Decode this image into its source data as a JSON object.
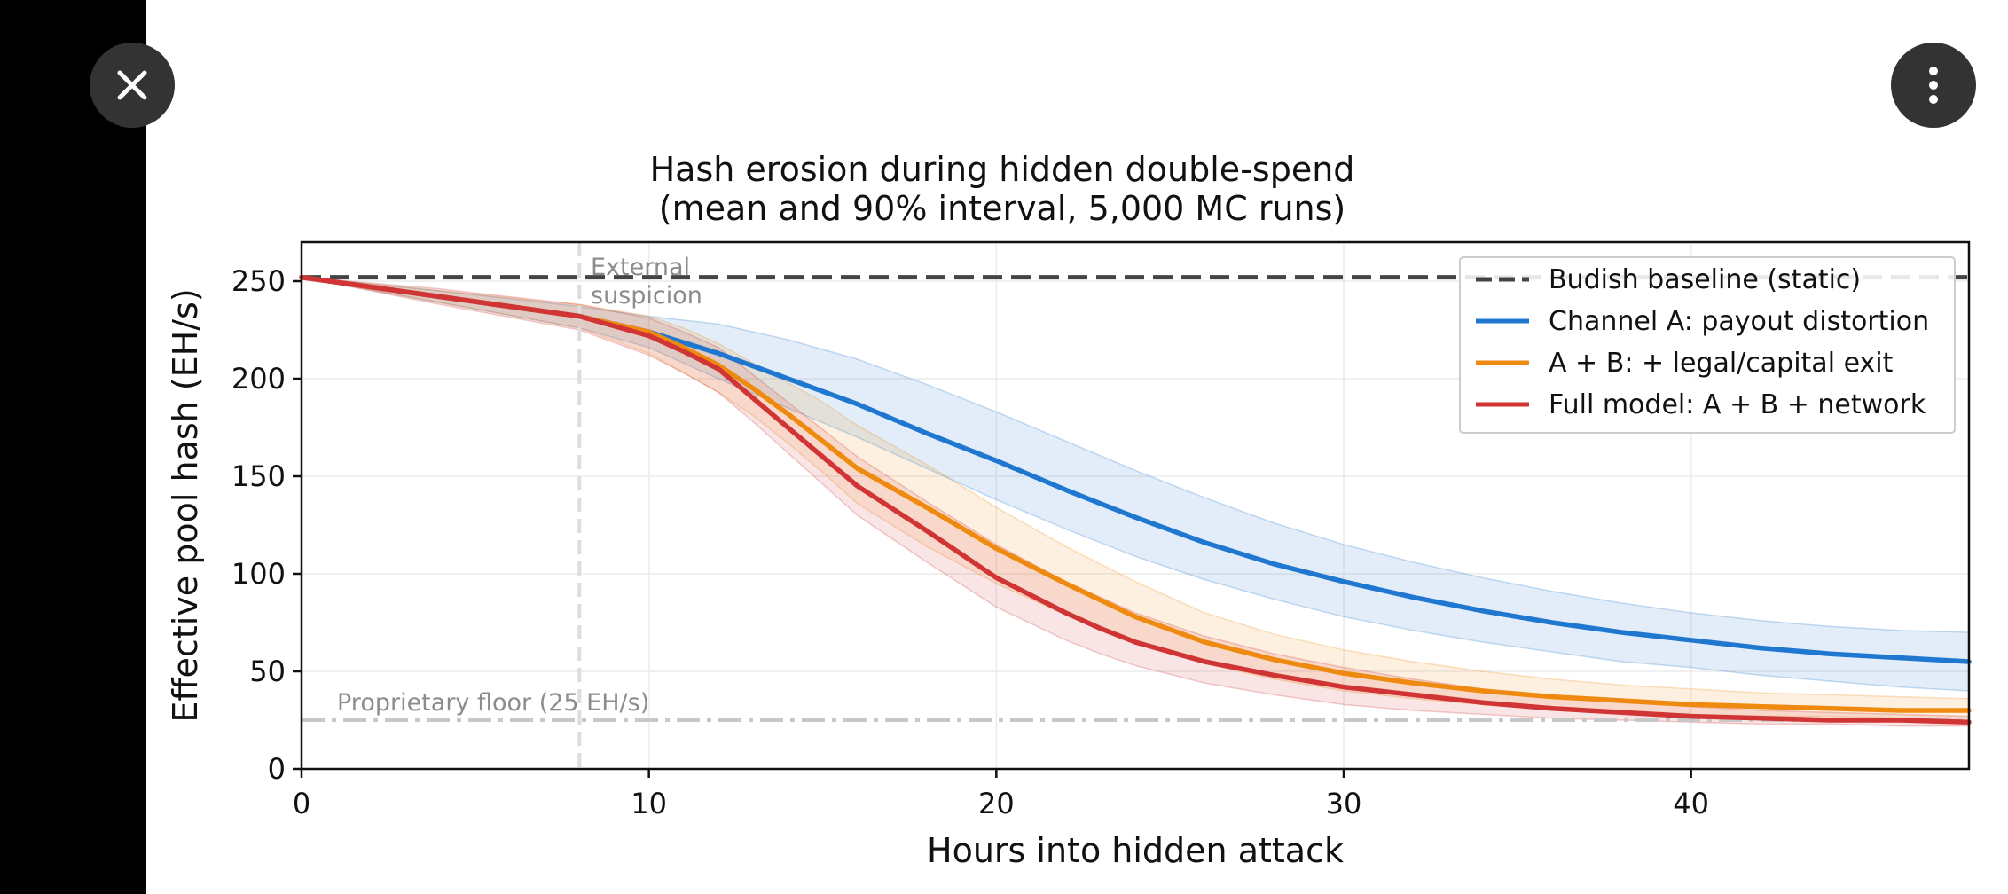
{
  "viewer": {
    "close_icon": "close-icon",
    "more_icon": "more-vertical-icon"
  },
  "colors": {
    "baseline": "#444444",
    "channel_a": "#1f77d0",
    "a_plus_b": "#ef8a10",
    "full_model": "#d03434",
    "floor": "#c8c8c8"
  },
  "chart_data": {
    "type": "line",
    "title": [
      "Hash erosion during hidden double-spend",
      "(mean and 90% interval, 5,000 MC runs)"
    ],
    "xlabel": "Hours into hidden attack",
    "ylabel": "Effective pool hash (EH/s)",
    "xlim": [
      0,
      48
    ],
    "ylim": [
      0,
      270
    ],
    "xticks": [
      0,
      10,
      20,
      30,
      40
    ],
    "yticks": [
      0,
      50,
      100,
      150,
      200,
      250
    ],
    "grid": true,
    "legend_position": "top-right",
    "series": [
      {
        "name": "Budish baseline (static)",
        "style": "dashed",
        "x": [
          0,
          48
        ],
        "y": [
          252,
          252
        ]
      },
      {
        "name": "Channel A: payout distortion",
        "style": "solid",
        "x": [
          0,
          4,
          8,
          10,
          12,
          14,
          16,
          18,
          20,
          22,
          24,
          26,
          28,
          30,
          32,
          34,
          36,
          38,
          40,
          42,
          44,
          46,
          48
        ],
        "y": [
          252,
          242,
          232,
          224,
          213,
          200,
          187,
          172,
          158,
          143,
          129,
          116,
          105,
          96,
          88,
          81,
          75,
          70,
          66,
          62,
          59,
          57,
          55
        ],
        "upper": [
          252,
          245,
          237,
          232,
          228,
          220,
          210,
          197,
          183,
          168,
          153,
          139,
          126,
          115,
          106,
          98,
          91,
          85,
          80,
          76,
          73,
          71,
          70
        ],
        "lower": [
          252,
          239,
          226,
          216,
          200,
          185,
          170,
          154,
          138,
          123,
          109,
          97,
          87,
          78,
          71,
          65,
          60,
          55,
          52,
          48,
          45,
          42,
          40
        ]
      },
      {
        "name": "A + B: + legal/capital exit",
        "style": "solid",
        "x": [
          0,
          4,
          8,
          10,
          11,
          12,
          13,
          14,
          15,
          16,
          18,
          20,
          22,
          24,
          26,
          28,
          30,
          32,
          34,
          36,
          38,
          40,
          42,
          44,
          46,
          48
        ],
        "y": [
          252,
          242,
          232,
          224,
          216,
          207,
          195,
          182,
          168,
          154,
          134,
          113,
          95,
          78,
          65,
          56,
          49,
          44,
          40,
          37,
          35,
          33,
          32,
          31,
          30,
          30
        ],
        "upper": [
          252,
          245,
          238,
          232,
          226,
          218,
          208,
          198,
          188,
          176,
          156,
          134,
          114,
          96,
          80,
          69,
          61,
          55,
          50,
          46,
          43,
          41,
          39,
          38,
          37,
          36
        ],
        "lower": [
          252,
          239,
          226,
          213,
          203,
          193,
          181,
          167,
          152,
          136,
          114,
          95,
          79,
          64,
          54,
          46,
          40,
          36,
          33,
          31,
          29,
          28,
          27,
          27,
          26,
          26
        ]
      },
      {
        "name": "Full model: A + B + network",
        "style": "solid",
        "x": [
          0,
          4,
          8,
          10,
          11,
          12,
          13,
          14,
          15,
          16,
          18,
          20,
          22,
          23,
          24,
          26,
          28,
          30,
          32,
          34,
          36,
          38,
          40,
          42,
          44,
          46,
          48
        ],
        "y": [
          252,
          242,
          232,
          222,
          214,
          205,
          190,
          175,
          160,
          145,
          122,
          98,
          80,
          72,
          65,
          55,
          48,
          42,
          38,
          34,
          31,
          29,
          27,
          26,
          25,
          25,
          24
        ],
        "upper": [
          252,
          246,
          238,
          231,
          224,
          216,
          202,
          188,
          174,
          160,
          137,
          115,
          96,
          88,
          80,
          68,
          59,
          52,
          46,
          41,
          37,
          34,
          32,
          30,
          29,
          28,
          27
        ],
        "lower": [
          252,
          238,
          225,
          212,
          203,
          193,
          178,
          162,
          146,
          130,
          106,
          83,
          66,
          59,
          53,
          44,
          38,
          33,
          30,
          28,
          26,
          25,
          24,
          23,
          23,
          22,
          22
        ]
      }
    ],
    "reference_lines": [
      {
        "orientation": "horizontal",
        "value": 25,
        "label": "Proprietary floor (25 EH/s)",
        "style": "dashdot"
      },
      {
        "orientation": "vertical",
        "value": 8,
        "label": [
          "External",
          "suspicion"
        ],
        "style": "dashed"
      }
    ]
  }
}
